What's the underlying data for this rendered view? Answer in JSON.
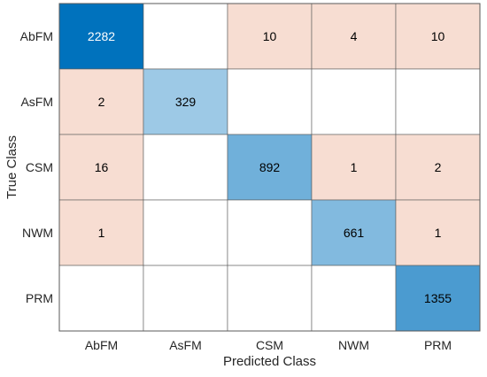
{
  "chart_data": {
    "type": "heatmap",
    "title": "",
    "xlabel": "Predicted Class",
    "ylabel": "True Class",
    "row_labels": [
      "AbFM",
      "AsFM",
      "CSM",
      "NWM",
      "PRM"
    ],
    "col_labels": [
      "AbFM",
      "AsFM",
      "CSM",
      "NWM",
      "PRM"
    ],
    "matrix": [
      [
        2282,
        null,
        10,
        4,
        10
      ],
      [
        2,
        329,
        null,
        null,
        null
      ],
      [
        16,
        null,
        892,
        1,
        2
      ],
      [
        1,
        null,
        null,
        661,
        1
      ],
      [
        null,
        null,
        null,
        null,
        1355
      ]
    ],
    "colors": {
      "correct_max": "#0072bd",
      "correct_min": "#ffffff",
      "incorrect": "#f7ddd2",
      "empty": "#ffffff",
      "grid": "#5a5a5a",
      "dark_text": "#ffffff",
      "light_text": "#000000"
    }
  }
}
